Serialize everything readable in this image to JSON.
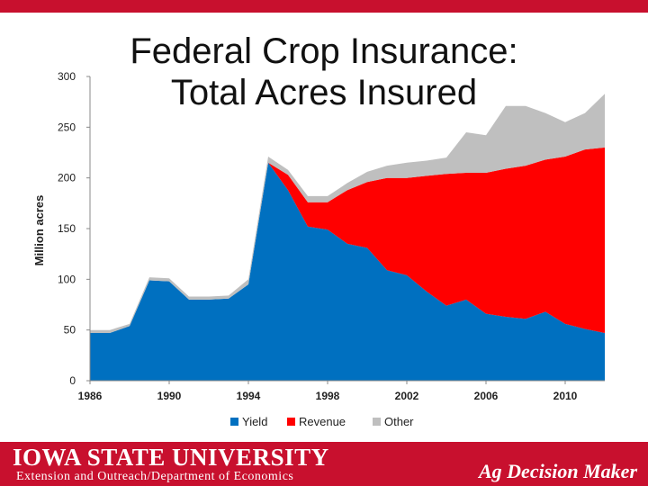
{
  "slide": {
    "title_line1": "Federal Crop Insurance:",
    "title_line2": "Total Acres Insured",
    "footer_university": "IOWA STATE UNIVERSITY",
    "footer_department": "Extension and Outreach/Department of Economics",
    "footer_brand": "Ag Decision Maker",
    "accent_color": "#c8102e"
  },
  "chart_data": {
    "type": "area",
    "stacked": true,
    "title": "",
    "xlabel": "",
    "ylabel": "Million acres",
    "ylim": [
      0,
      300
    ],
    "yticks": [
      0,
      50,
      100,
      150,
      200,
      250,
      300
    ],
    "xlim": [
      1986,
      2012
    ],
    "xticks": [
      1986,
      1990,
      1994,
      1998,
      2002,
      2006,
      2010
    ],
    "legend_position": "bottom",
    "x": [
      1986,
      1987,
      1988,
      1989,
      1990,
      1991,
      1992,
      1993,
      1994,
      1995,
      1996,
      1997,
      1998,
      1999,
      2000,
      2001,
      2002,
      2003,
      2004,
      2005,
      2006,
      2007,
      2008,
      2009,
      2010,
      2011,
      2012
    ],
    "series": [
      {
        "name": "Yield",
        "color": "#0070c0",
        "values": [
          47,
          47,
          54,
          99,
          98,
          80,
          80,
          81,
          95,
          215,
          188,
          152,
          149,
          135,
          131,
          109,
          104,
          88,
          74,
          80,
          66,
          63,
          61,
          68,
          56,
          51,
          47
        ]
      },
      {
        "name": "Revenue",
        "color": "#ff0000",
        "values": [
          0,
          0,
          0,
          0,
          0,
          0,
          0,
          0,
          0,
          0,
          15,
          24,
          27,
          53,
          65,
          91,
          96,
          114,
          130,
          125,
          139,
          146,
          151,
          150,
          165,
          177,
          183
        ]
      },
      {
        "name": "Other",
        "color": "#bfbfbf",
        "values": [
          3,
          3,
          2,
          3,
          3,
          3,
          3,
          3,
          5,
          6,
          5,
          6,
          6,
          7,
          10,
          12,
          15,
          15,
          16,
          40,
          37,
          62,
          59,
          46,
          34,
          36,
          53
        ]
      }
    ]
  }
}
